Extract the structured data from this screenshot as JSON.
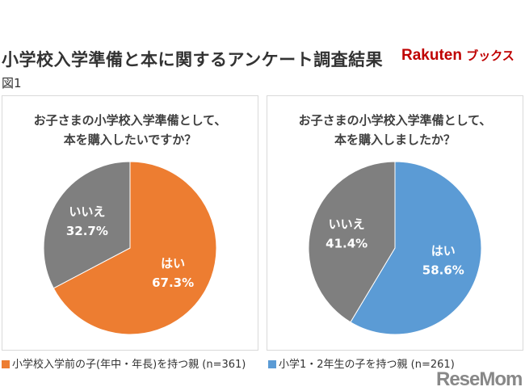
{
  "header": {
    "title": "小学校入学準備と本に関するアンケート調査結果",
    "logo": "Rakuten ブックス",
    "figure_label": "図1"
  },
  "watermark": "ReseMom",
  "colors": {
    "yes_left": "#ED7D31",
    "yes_right": "#5B9BD5",
    "no": "#7F7F7F"
  },
  "chart_data": [
    {
      "type": "pie",
      "title": "お子さまの小学校入学準備として、\n本を購入したいですか？",
      "title_lines": [
        "お子さまの小学校入学準備として、",
        "本を購入したいですか？"
      ],
      "slices": [
        {
          "label": "はい",
          "value": 67.3,
          "text": "67.3%",
          "color": "#ED7D31"
        },
        {
          "label": "いいえ",
          "value": 32.7,
          "text": "32.7%",
          "color": "#7F7F7F"
        }
      ],
      "legend": "小学校入学前の子(年中・年長)を持つ親 (n=361)"
    },
    {
      "type": "pie",
      "title": "お子さまの小学校入学準備として、\n本を購入しましたか？",
      "title_lines": [
        "お子さまの小学校入学準備として、",
        "本を購入しましたか？"
      ],
      "slices": [
        {
          "label": "はい",
          "value": 58.6,
          "text": "58.6%",
          "color": "#5B9BD5"
        },
        {
          "label": "いいえ",
          "value": 41.4,
          "text": "41.4%",
          "color": "#7F7F7F"
        }
      ],
      "legend": "小学1・2年生の子を持つ親 (n=261)"
    }
  ]
}
